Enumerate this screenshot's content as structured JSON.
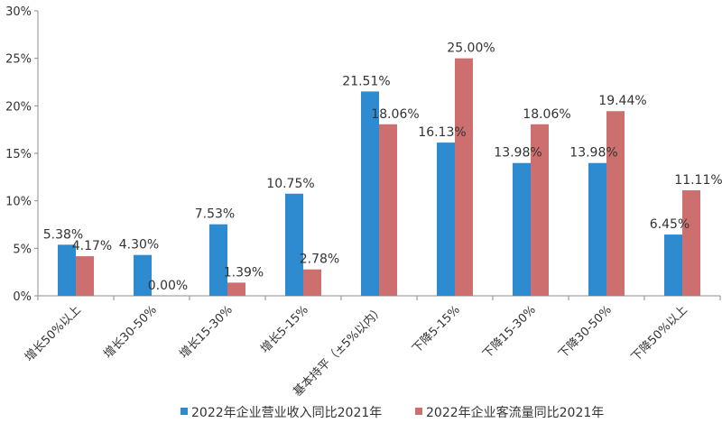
{
  "chart_data": {
    "type": "bar",
    "categories": [
      "增长50%以上",
      "增长30-50%",
      "增长15-30%",
      "增长5-15%",
      "基本持平（±5%以内）",
      "下降5-15%",
      "下降15-30%",
      "下降30-50%",
      "下降50%以上"
    ],
    "series": [
      {
        "name": "2022年企业营业收入同比2021年",
        "color": "#2e8bd0",
        "values": [
          5.38,
          4.3,
          7.53,
          10.75,
          21.51,
          16.13,
          13.98,
          13.98,
          6.45
        ],
        "labels": [
          "5.38%",
          "4.30%",
          "7.53%",
          "10.75%",
          "21.51%",
          "16.13%",
          "13.98%",
          "13.98%",
          "6.45%"
        ]
      },
      {
        "name": "2022年企业客流量同比2021年",
        "color": "#cd6f6f",
        "values": [
          4.17,
          0.0,
          1.39,
          2.78,
          18.06,
          25.0,
          18.06,
          19.44,
          11.11
        ],
        "labels": [
          "4.17%",
          "0.00%",
          "1.39%",
          "2.78%",
          "18.06%",
          "25.00%",
          "18.06%",
          "19.44%",
          "11.11%"
        ]
      }
    ],
    "ylim": [
      0,
      30
    ],
    "yticks": [
      0,
      5,
      10,
      15,
      20,
      25,
      30
    ],
    "ytick_labels": [
      "0%",
      "5%",
      "10%",
      "15%",
      "20%",
      "25%",
      "30%"
    ],
    "grid": false,
    "legend": "bottom"
  }
}
